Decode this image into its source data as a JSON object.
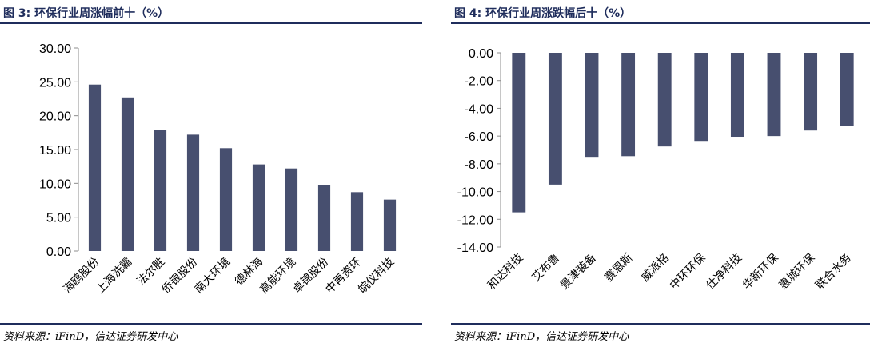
{
  "charts": [
    {
      "figure_title": "图 3:  环保行业周涨幅前十（%）",
      "source": "资料来源：iFinD，信达证券研发中心"
    },
    {
      "figure_title": "图 4:  环保行业周涨跌幅后十（%）",
      "source": "资料来源：iFinD，信达证券研发中心"
    }
  ],
  "colors": {
    "bar": "#474f6f",
    "rule": "#1f2d5c",
    "title": "#1f2d5c"
  },
  "chart_data": [
    {
      "type": "bar",
      "title": "",
      "xlabel": "",
      "ylabel": "",
      "categories": [
        "海鸥股份",
        "上海洗霸",
        "法尔胜",
        "侨银股份",
        "南大环境",
        "德林海",
        "高能环境",
        "卓锦股份",
        "中再资环",
        "皖仪科技"
      ],
      "values": [
        24.6,
        22.7,
        17.9,
        17.2,
        15.2,
        12.8,
        12.2,
        9.8,
        8.7,
        7.6
      ],
      "ylim": [
        0,
        30
      ],
      "yticks": [
        "30.00",
        "25.00",
        "20.00",
        "15.00",
        "10.00",
        "5.00",
        "0.00"
      ],
      "grid": false
    },
    {
      "type": "bar",
      "title": "",
      "xlabel": "",
      "ylabel": "",
      "categories": [
        "和达科技",
        "艾布鲁",
        "景津装备",
        "赛恩斯",
        "威派格",
        "中环环保",
        "仕净科技",
        "华新环保",
        "惠城环保",
        "联合水务"
      ],
      "values": [
        -11.5,
        -9.5,
        -7.5,
        -7.45,
        -6.75,
        -6.35,
        -6.05,
        -6.0,
        -5.6,
        -5.25
      ],
      "ylim": [
        -14,
        0
      ],
      "yticks": [
        "0.00",
        "-2.00",
        "-4.00",
        "-6.00",
        "-8.00",
        "-10.00",
        "-12.00",
        "-14.00"
      ],
      "grid": false
    }
  ]
}
